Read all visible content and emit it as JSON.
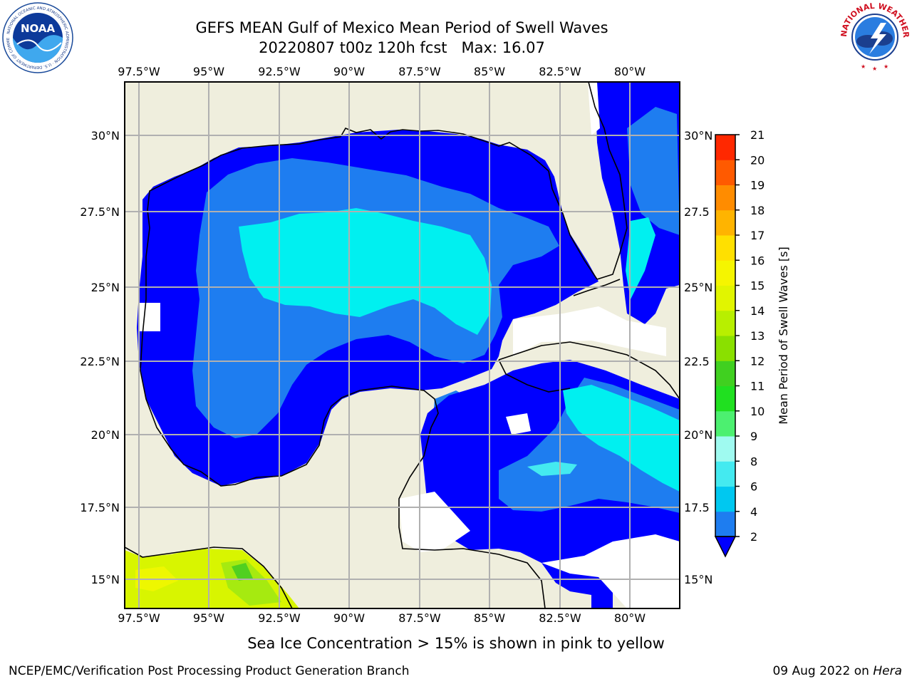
{
  "header": {
    "title_line1": "GEFS MEAN Gulf of Mexico Mean Period of Swell Waves",
    "title_run": "20220807 t00z 120h fcst",
    "title_max": "Max: 16.07"
  },
  "logos": {
    "left": "NOAA",
    "left_ring": "NATIONAL OCEANIC AND ATMOSPHERIC ADMINISTRATION · U.S. DEPARTMENT OF COMMERCE",
    "right_ring": "NATIONAL WEATHER SERVICE"
  },
  "map": {
    "lon_labels": [
      "97.5°W",
      "95°W",
      "92.5°W",
      "90°W",
      "87.5°W",
      "85°W",
      "82.5°W",
      "80°W"
    ],
    "lat_labels_left": [
      "30°N",
      "27.5°N",
      "25°N",
      "22.5°N",
      "20°N",
      "17.5°N",
      "15°N"
    ],
    "lat_labels_right": [
      "30°N",
      "27.5",
      "25°N",
      "22.5",
      "20°N",
      "17.5",
      "15°N"
    ],
    "lon_range": [
      -98,
      -79.5
    ],
    "lat_range": [
      14,
      31.8
    ],
    "gridlines": true,
    "colors": {
      "land": "#efeedd",
      "ocean_missing": "#ffffff",
      "coast": "#000000",
      "grid": "#b0b0b0"
    }
  },
  "colorbar": {
    "label": "Mean Period of Swell Waves [s]",
    "ticks": [
      "2",
      "4",
      "6",
      "8",
      "9",
      "10",
      "11",
      "12",
      "13",
      "14",
      "15",
      "16",
      "17",
      "18",
      "19",
      "20",
      "21"
    ],
    "colors": [
      "#1e7df0",
      "#00c8f0",
      "#44eaf0",
      "#9ffaf0",
      "#4cf070",
      "#20e020",
      "#40d020",
      "#8ae000",
      "#b8ef00",
      "#e1f500",
      "#f5f500",
      "#ffe000",
      "#ffb400",
      "#ff8c00",
      "#ff5a00",
      "#ff2800",
      "#ff0000"
    ],
    "underflow_color": "#0000ff"
  },
  "footer": {
    "note": "Sea Ice Concentration > 15% is shown in pink to yellow",
    "credit": "NCEP/EMC/Verification Post Processing Product Generation Branch",
    "date_prefix": "09 Aug 2022 on",
    "machine": "Hera"
  }
}
